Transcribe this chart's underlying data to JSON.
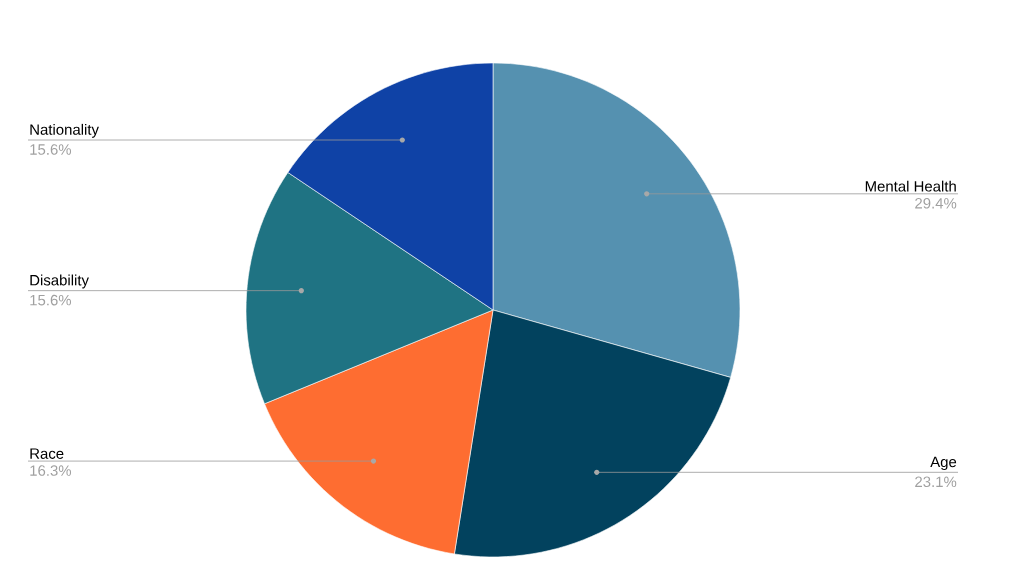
{
  "chart_data": {
    "type": "pie",
    "categories": [
      "Mental Health",
      "Age",
      "Race",
      "Disability",
      "Nationality"
    ],
    "values": [
      29.4,
      23.1,
      16.3,
      15.6,
      15.6
    ],
    "colors": [
      "#5591b0",
      "#02425e",
      "#fe6d31",
      "#1f7383",
      "#0f42a6"
    ],
    "value_labels": [
      "29.4%",
      "23.1%",
      "16.3%",
      "15.6%",
      "15.6%"
    ]
  }
}
